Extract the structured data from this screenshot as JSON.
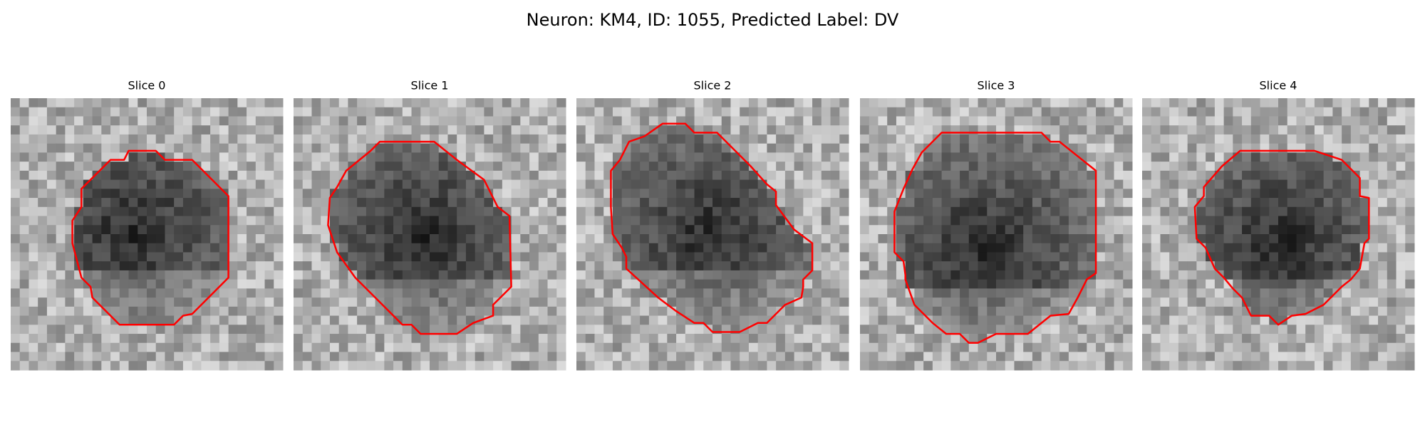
{
  "title": "Neuron: KM4, ID: 1055, Predicted Label: DV",
  "panels": [
    {
      "title": "Slice 0"
    },
    {
      "title": "Slice 1"
    },
    {
      "title": "Slice 2"
    },
    {
      "title": "Slice 3"
    },
    {
      "title": "Slice 4"
    }
  ]
}
